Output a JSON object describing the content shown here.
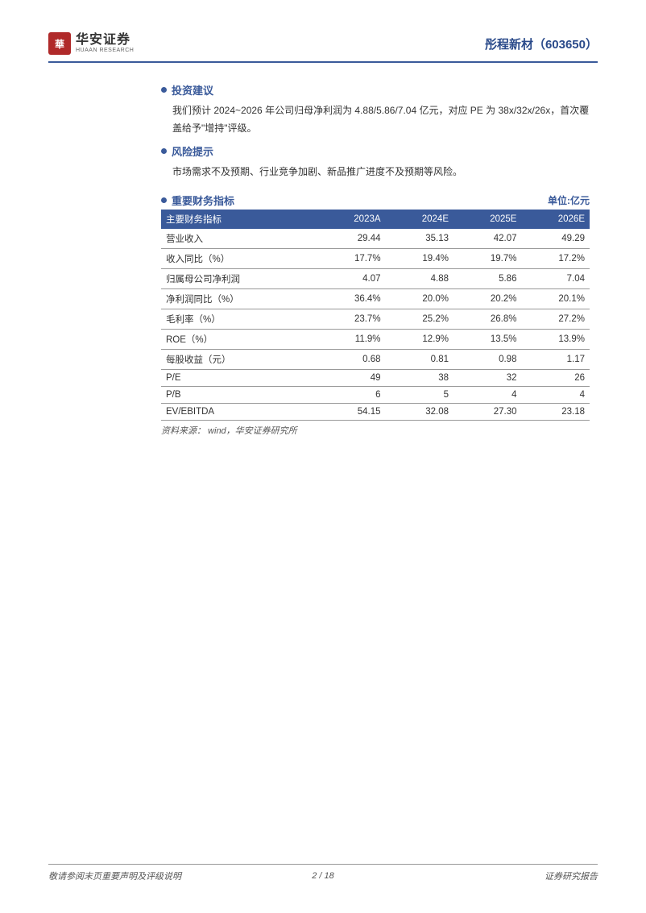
{
  "header": {
    "logo_seal_char": "華",
    "logo_cn": "华安证券",
    "logo_en": "HUAAN RESEARCH",
    "company_title": "彤程新材（603650）"
  },
  "sections": {
    "invest": {
      "title": "投资建议",
      "body": "我们预计 2024~2026 年公司归母净利润为 4.88/5.86/7.04 亿元，对应 PE 为 38x/32x/26x，首次覆盖给予\"增持\"评级。"
    },
    "risk": {
      "title": "风险提示",
      "body": "市场需求不及预期、行业竞争加剧、新品推广进度不及预期等风险。"
    }
  },
  "table": {
    "title": "重要财务指标",
    "unit": "单位:亿元",
    "header_bg": "#3a5a9a",
    "header_fg": "#ffffff",
    "border_color": "#999999",
    "columns": [
      "主要财务指标",
      "2023A",
      "2024E",
      "2025E",
      "2026E"
    ],
    "rows": [
      [
        "营业收入",
        "29.44",
        "35.13",
        "42.07",
        "49.29"
      ],
      [
        "收入同比（%）",
        "17.7%",
        "19.4%",
        "19.7%",
        "17.2%"
      ],
      [
        "归属母公司净利润",
        "4.07",
        "4.88",
        "5.86",
        "7.04"
      ],
      [
        "净利润同比（%）",
        "36.4%",
        "20.0%",
        "20.2%",
        "20.1%"
      ],
      [
        "毛利率（%）",
        "23.7%",
        "25.2%",
        "26.8%",
        "27.2%"
      ],
      [
        "ROE（%）",
        "11.9%",
        "12.9%",
        "13.5%",
        "13.9%"
      ],
      [
        "每股收益（元）",
        "0.68",
        "0.81",
        "0.98",
        "1.17"
      ],
      [
        "P/E",
        "49",
        "38",
        "32",
        "26"
      ],
      [
        "P/B",
        "6",
        "5",
        "4",
        "4"
      ],
      [
        "EV/EBITDA",
        "54.15",
        "32.08",
        "27.30",
        "23.18"
      ]
    ],
    "source": "资料来源： wind，华安证券研究所"
  },
  "footer": {
    "left": "敬请参阅末页重要声明及评级说明",
    "center": "2 / 18",
    "right": "证券研究报告"
  }
}
